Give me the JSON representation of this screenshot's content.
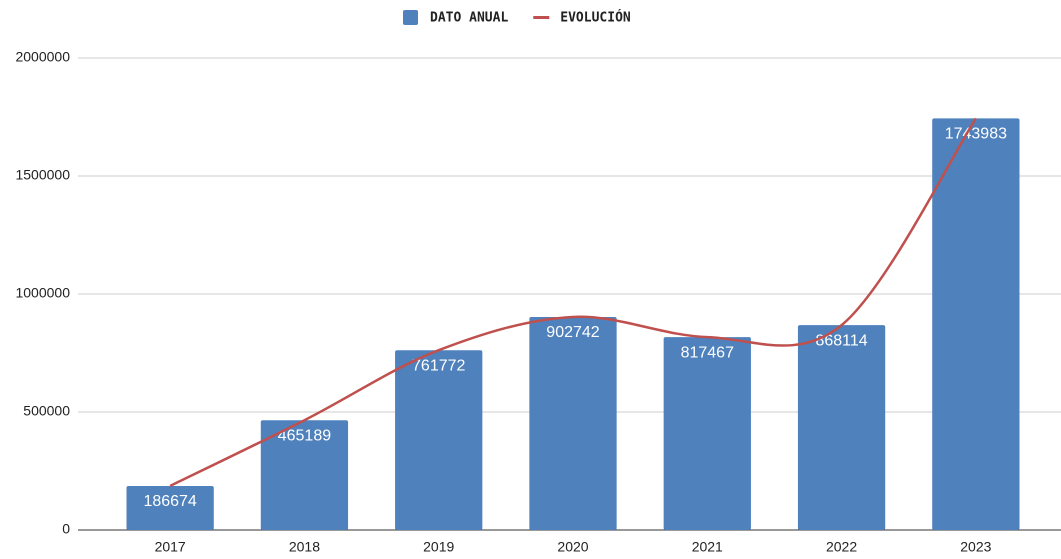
{
  "chart_data": {
    "type": "bar",
    "categories": [
      "2017",
      "2018",
      "2019",
      "2020",
      "2021",
      "2022",
      "2023"
    ],
    "series": [
      {
        "name": "DATO ANUAL",
        "type": "bar",
        "color": "#4f81bd",
        "values": [
          186674,
          465189,
          761772,
          902742,
          817467,
          868114,
          1743983
        ]
      },
      {
        "name": "EVOLUCIÓN",
        "type": "line",
        "color": "#c0504d",
        "values": [
          186674,
          465189,
          761772,
          902742,
          817467,
          868114,
          1743983
        ]
      }
    ],
    "ylim": [
      0,
      2000000
    ],
    "yticks": [
      0,
      500000,
      1000000,
      1500000,
      2000000
    ],
    "grid": true,
    "legend": "top"
  }
}
